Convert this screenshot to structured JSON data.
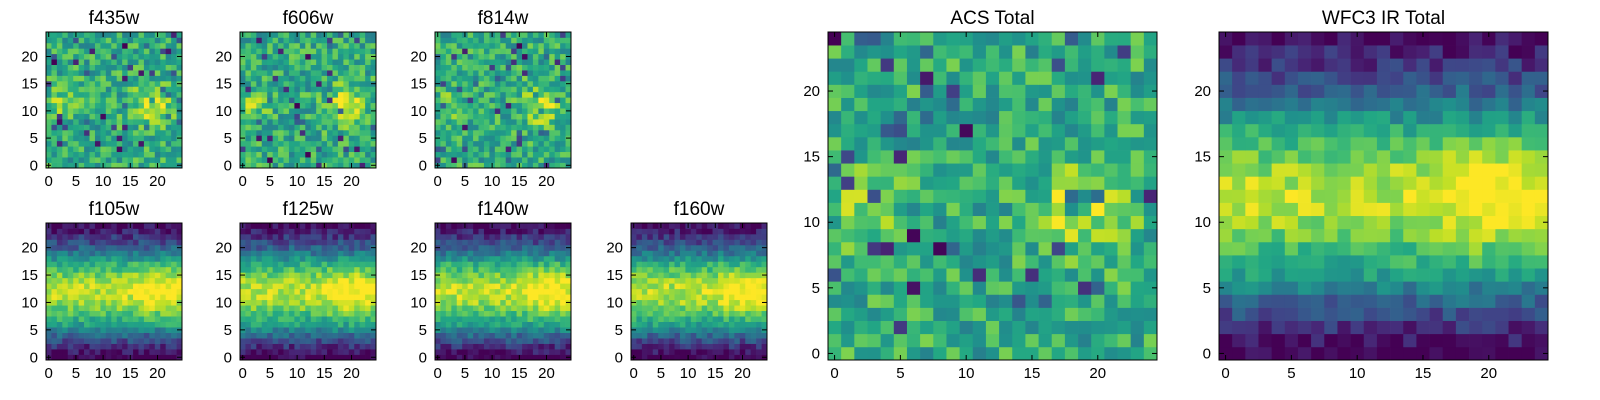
{
  "colormap": "viridis",
  "colors": {
    "low": "#440154",
    "mid": "#21918c",
    "high": "#fde725"
  },
  "chart_data": [
    {
      "type": "heatmap",
      "title": "f435w",
      "xticks": [
        "0",
        "5",
        "10",
        "15",
        "20"
      ],
      "yticks": [
        "0",
        "5",
        "10",
        "15",
        "20"
      ],
      "xlim": [
        0,
        25
      ],
      "ylim": [
        0,
        25
      ],
      "grid": false,
      "legend": "none",
      "pattern": "uniform"
    },
    {
      "type": "heatmap",
      "title": "f606w",
      "xticks": [
        "0",
        "5",
        "10",
        "15",
        "20"
      ],
      "yticks": [
        "0",
        "5",
        "10",
        "15",
        "20"
      ],
      "xlim": [
        0,
        25
      ],
      "ylim": [
        0,
        25
      ],
      "grid": false,
      "legend": "none",
      "pattern": "uniform"
    },
    {
      "type": "heatmap",
      "title": "f814w",
      "xticks": [
        "0",
        "5",
        "10",
        "15",
        "20"
      ],
      "yticks": [
        "0",
        "5",
        "10",
        "15",
        "20"
      ],
      "xlim": [
        0,
        25
      ],
      "ylim": [
        0,
        25
      ],
      "grid": false,
      "legend": "none",
      "pattern": "uniform"
    },
    {
      "type": "heatmap",
      "title": "f105w",
      "xticks": [
        "0",
        "5",
        "10",
        "15",
        "20"
      ],
      "yticks": [
        "0",
        "5",
        "10",
        "15",
        "20"
      ],
      "xlim": [
        0,
        25
      ],
      "ylim": [
        0,
        25
      ],
      "grid": false,
      "legend": "none",
      "pattern": "band"
    },
    {
      "type": "heatmap",
      "title": "f125w",
      "xticks": [
        "0",
        "5",
        "10",
        "15",
        "20"
      ],
      "yticks": [
        "0",
        "5",
        "10",
        "15",
        "20"
      ],
      "xlim": [
        0,
        25
      ],
      "ylim": [
        0,
        25
      ],
      "grid": false,
      "legend": "none",
      "pattern": "band"
    },
    {
      "type": "heatmap",
      "title": "f140w",
      "xticks": [
        "0",
        "5",
        "10",
        "15",
        "20"
      ],
      "yticks": [
        "0",
        "5",
        "10",
        "15",
        "20"
      ],
      "xlim": [
        0,
        25
      ],
      "ylim": [
        0,
        25
      ],
      "grid": false,
      "legend": "none",
      "pattern": "band"
    },
    {
      "type": "heatmap",
      "title": "f160w",
      "xticks": [
        "0",
        "5",
        "10",
        "15",
        "20"
      ],
      "yticks": [
        "0",
        "5",
        "10",
        "15",
        "20"
      ],
      "xlim": [
        0,
        25
      ],
      "ylim": [
        0,
        25
      ],
      "grid": false,
      "legend": "none",
      "pattern": "band"
    },
    {
      "type": "heatmap",
      "title": "ACS Total",
      "xticks": [
        "0",
        "5",
        "10",
        "15",
        "20"
      ],
      "yticks": [
        "0",
        "5",
        "10",
        "15",
        "20"
      ],
      "xlim": [
        0,
        25
      ],
      "ylim": [
        0,
        25
      ],
      "grid": false,
      "legend": "none",
      "pattern": "uniform"
    },
    {
      "type": "heatmap",
      "title": "WFC3 IR Total",
      "xticks": [
        "0",
        "5",
        "10",
        "15",
        "20"
      ],
      "yticks": [
        "0",
        "5",
        "10",
        "15",
        "20"
      ],
      "xlim": [
        0,
        25
      ],
      "ylim": [
        0,
        25
      ],
      "grid": false,
      "legend": "none",
      "pattern": "band"
    }
  ]
}
